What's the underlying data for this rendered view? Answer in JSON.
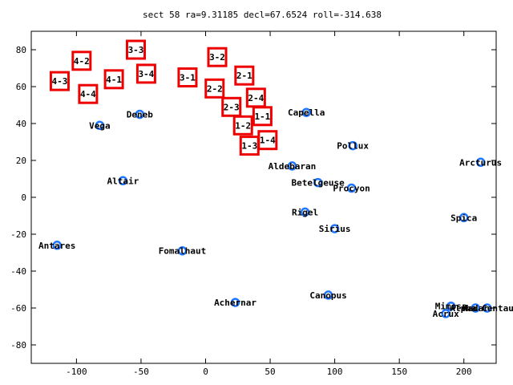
{
  "chart_data": {
    "type": "scatter",
    "title": "sect 58 ra=9.31185 decl=67.6524 roll=-314.638",
    "xlabel": "",
    "ylabel": "",
    "xlim": [
      -135,
      225
    ],
    "ylim": [
      -90,
      90
    ],
    "xticks": [
      -100,
      -50,
      0,
      50,
      100,
      150,
      200
    ],
    "yticks": [
      -80,
      -60,
      -40,
      -20,
      0,
      20,
      40,
      60,
      80
    ],
    "grid": false,
    "colors": {
      "stars": "#1f77ff",
      "boxes": "#ee0000"
    },
    "stars": [
      {
        "name": "Deneb",
        "x": -51,
        "y": 45
      },
      {
        "name": "Vega",
        "x": -82,
        "y": 39
      },
      {
        "name": "Altair",
        "x": -64,
        "y": 9
      },
      {
        "name": "Antares",
        "x": -115,
        "y": -26
      },
      {
        "name": "Fomalhaut",
        "x": -18,
        "y": -29
      },
      {
        "name": "Achernar",
        "x": 23,
        "y": -57
      },
      {
        "name": "Canopus",
        "x": 95,
        "y": -53
      },
      {
        "name": "Capella",
        "x": 78,
        "y": 46
      },
      {
        "name": "Pollux",
        "x": 114,
        "y": 28
      },
      {
        "name": "Aldebaran",
        "x": 67,
        "y": 17
      },
      {
        "name": "Betelgeuse",
        "x": 87,
        "y": 8
      },
      {
        "name": "Procyon",
        "x": 113,
        "y": 5
      },
      {
        "name": "Rigel",
        "x": 77,
        "y": -8
      },
      {
        "name": "Sirius",
        "x": 100,
        "y": -17
      },
      {
        "name": "Arcturus",
        "x": 213,
        "y": 19
      },
      {
        "name": "Spica",
        "x": 200,
        "y": -11
      },
      {
        "name": "Mimosa",
        "x": 190,
        "y": -59
      },
      {
        "name": "Acrux",
        "x": 186,
        "y": -63
      },
      {
        "name": "Hadar",
        "x": 209,
        "y": -60
      },
      {
        "name": "Alpha Centauri",
        "x": 218,
        "y": -60
      }
    ],
    "boxes": [
      {
        "label": "3-3",
        "x": -54,
        "y": 80
      },
      {
        "label": "4-2",
        "x": -96,
        "y": 74
      },
      {
        "label": "3-4",
        "x": -46,
        "y": 67
      },
      {
        "label": "4-1",
        "x": -71,
        "y": 64
      },
      {
        "label": "4-3",
        "x": -113,
        "y": 63
      },
      {
        "label": "4-4",
        "x": -91,
        "y": 56
      },
      {
        "label": "3-2",
        "x": 9,
        "y": 76
      },
      {
        "label": "2-1",
        "x": 30,
        "y": 66
      },
      {
        "label": "3-1",
        "x": -14,
        "y": 65
      },
      {
        "label": "2-2",
        "x": 7,
        "y": 59
      },
      {
        "label": "2-4",
        "x": 39,
        "y": 54
      },
      {
        "label": "2-3",
        "x": 20,
        "y": 49
      },
      {
        "label": "1-1",
        "x": 44,
        "y": 44
      },
      {
        "label": "1-2",
        "x": 29,
        "y": 39
      },
      {
        "label": "1-4",
        "x": 48,
        "y": 31
      },
      {
        "label": "1-3",
        "x": 34,
        "y": 28
      }
    ]
  }
}
